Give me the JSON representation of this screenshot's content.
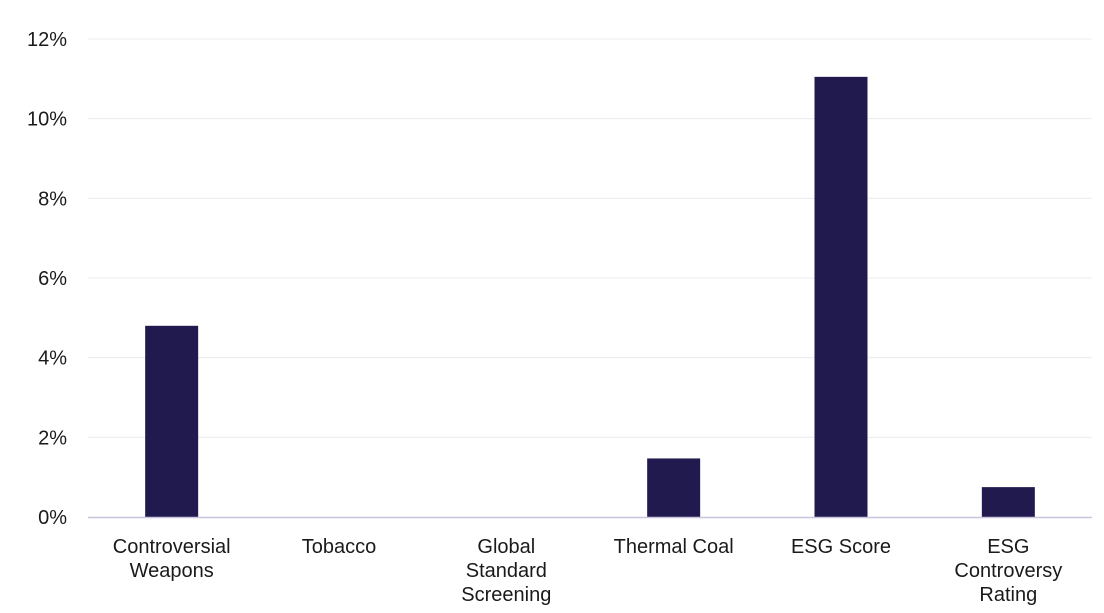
{
  "chart_data": {
    "type": "bar",
    "categories": [
      "Controversial Weapons",
      "Tobacco",
      "Global Standard Screening",
      "Thermal Coal",
      "ESG Score",
      "ESG Controversy Rating"
    ],
    "category_lines": [
      [
        "Controversial",
        "Weapons"
      ],
      [
        "Tobacco"
      ],
      [
        "Global",
        "Standard",
        "Screening"
      ],
      [
        "Thermal Coal"
      ],
      [
        "ESG Score"
      ],
      [
        "ESG",
        "Controversy",
        "Rating"
      ]
    ],
    "values": [
      4.8,
      0,
      0,
      1.47,
      11.05,
      0.75
    ],
    "ylim": [
      0,
      12
    ],
    "yticks": [
      0,
      2,
      4,
      6,
      8,
      10,
      12
    ],
    "ytick_labels": [
      "0%",
      "2%",
      "4%",
      "6%",
      "8%",
      "10%",
      "12%"
    ],
    "grid": true,
    "legend": "none",
    "colors": {
      "bar": "#211a4f",
      "grid": "#ececec",
      "axis": "#c9c5dd",
      "text": "#1a1a1a"
    }
  }
}
